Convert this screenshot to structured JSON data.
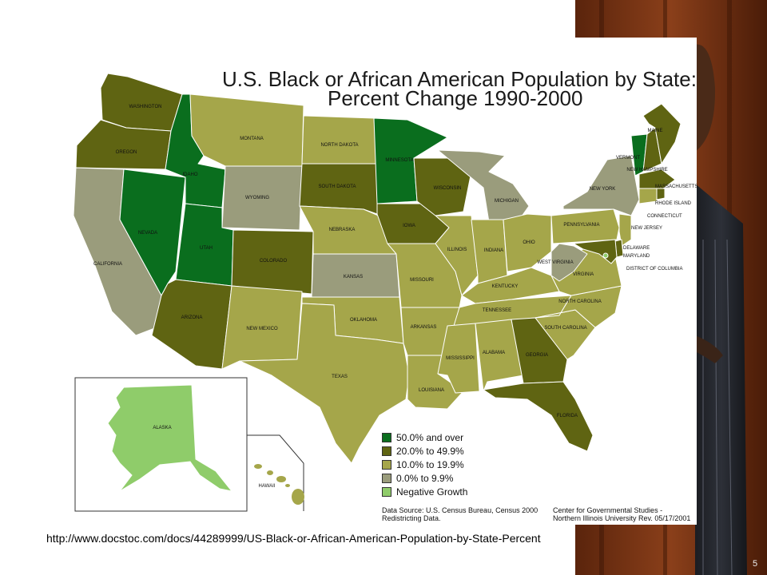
{
  "title_line1": "U.S. Black or African American Population by State:",
  "title_line2": "Percent Change 1990-2000",
  "legend": [
    {
      "label": "50.0% and over",
      "color": "#0a6e1e"
    },
    {
      "label": "20.0% to 49.9%",
      "color": "#5f6412"
    },
    {
      "label": "10.0% to 19.9%",
      "color": "#a5a64a"
    },
    {
      "label": "0.0% to 9.9%",
      "color": "#9a9c7c"
    },
    {
      "label": "Negative Growth",
      "color": "#8fcc6a"
    }
  ],
  "source_left_1": "Data Source:  U.S. Census Bureau, Census 2000",
  "source_left_2": "Redistricting Data.",
  "source_right_1": "Center for Governmental Studies -",
  "source_right_2": "Northern Illinois University Rev. 05/17/2001",
  "url": "http://www.docstoc.com/docs/44289999/US-Black-or-African-American-Population-by-State-Percent",
  "page_number": "5",
  "state_labels": {
    "washington": "WASHINGTON",
    "oregon": "OREGON",
    "california": "CALIFORNIA",
    "nevada": "NEVADA",
    "idaho": "IDAHO",
    "montana": "MONTANA",
    "wyoming": "WYOMING",
    "utah": "UTAH",
    "arizona": "ARIZONA",
    "colorado": "COLORADO",
    "new_mexico": "NEW MEXICO",
    "north_dakota": "NORTH DAKOTA",
    "south_dakota": "SOUTH DAKOTA",
    "nebraska": "NEBRASKA",
    "kansas": "KANSAS",
    "oklahoma": "OKLAHOMA",
    "texas": "TEXAS",
    "minnesota": "MINNESOTA",
    "iowa": "IOWA",
    "missouri": "MISSOURI",
    "arkansas": "ARKANSAS",
    "louisiana": "LOUISIANA",
    "wisconsin": "WISCONSIN",
    "illinois": "ILLINOIS",
    "michigan": "MICHIGAN",
    "indiana": "INDIANA",
    "ohio": "OHIO",
    "kentucky": "KENTUCKY",
    "tennessee": "TENNESSEE",
    "mississippi": "MISSISSIPPI",
    "alabama": "ALABAMA",
    "georgia": "GEORGIA",
    "florida": "FLORIDA",
    "south_carolina": "SOUTH CAROLINA",
    "north_carolina": "NORTH CAROLINA",
    "virginia": "VIRGINIA",
    "west_virginia": "WEST VIRGINIA",
    "pennsylvania": "PENNSYLVANIA",
    "new_york": "NEW YORK",
    "vermont": "VERMONT",
    "new_hampshire": "NEW HAMPSHIRE",
    "maine": "MAINE",
    "massachusetts": "MASSACHUSETTS",
    "rhode_island": "RHODE ISLAND",
    "connecticut": "CONNECTICUT",
    "new_jersey": "NEW JERSEY",
    "delaware": "DELAWARE",
    "maryland": "MARYLAND",
    "district_of_columbia": "DISTRICT OF COLUMBIA",
    "alaska": "ALASKA",
    "hawaii": "HAWAII"
  },
  "state_category": {
    "washington": "20.0% to 49.9%",
    "oregon": "20.0% to 49.9%",
    "california": "0.0% to 9.9%",
    "nevada": "50.0% and over",
    "idaho": "50.0% and over",
    "montana": "10.0% to 19.9%",
    "wyoming": "0.0% to 9.9%",
    "utah": "50.0% and over",
    "arizona": "20.0% to 49.9%",
    "colorado": "20.0% to 49.9%",
    "new_mexico": "10.0% to 19.9%",
    "north_dakota": "10.0% to 19.9%",
    "south_dakota": "20.0% to 49.9%",
    "nebraska": "10.0% to 19.9%",
    "kansas": "0.0% to 9.9%",
    "oklahoma": "10.0% to 19.9%",
    "texas": "10.0% to 19.9%",
    "minnesota": "50.0% and over",
    "iowa": "20.0% to 49.9%",
    "missouri": "10.0% to 19.9%",
    "arkansas": "10.0% to 19.9%",
    "louisiana": "10.0% to 19.9%",
    "wisconsin": "20.0% to 49.9%",
    "illinois": "10.0% to 19.9%",
    "michigan": "0.0% to 9.9%",
    "indiana": "10.0% to 19.9%",
    "ohio": "10.0% to 19.9%",
    "kentucky": "10.0% to 19.9%",
    "tennessee": "10.0% to 19.9%",
    "mississippi": "10.0% to 19.9%",
    "alabama": "10.0% to 19.9%",
    "georgia": "20.0% to 49.9%",
    "florida": "20.0% to 49.9%",
    "south_carolina": "10.0% to 19.9%",
    "north_carolina": "10.0% to 19.9%",
    "virginia": "10.0% to 19.9%",
    "west_virginia": "0.0% to 9.9%",
    "pennsylvania": "10.0% to 19.9%",
    "new_york": "0.0% to 9.9%",
    "vermont": "50.0% and over",
    "new_hampshire": "20.0% to 49.9%",
    "maine": "20.0% to 49.9%",
    "massachusetts": "20.0% to 49.9%",
    "rhode_island": "20.0% to 49.9%",
    "connecticut": "10.0% to 19.9%",
    "new_jersey": "10.0% to 19.9%",
    "delaware": "20.0% to 49.9%",
    "maryland": "20.0% to 49.9%",
    "district_of_columbia": "Negative Growth",
    "alaska": "Negative Growth",
    "hawaii": "10.0% to 19.9%"
  }
}
